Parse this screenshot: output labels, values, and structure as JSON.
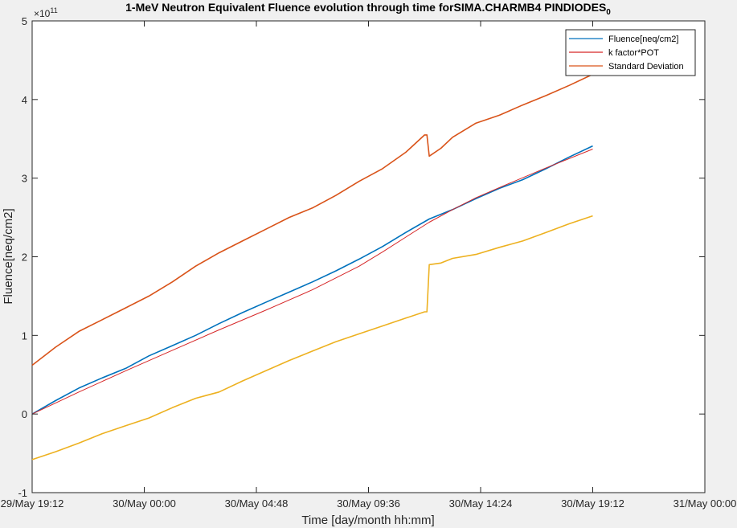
{
  "chart_data": {
    "type": "line",
    "title": "1-MeV Neutron Equivalent Fluence evolution through time forSIMA.CHARMB4 PINDIODES",
    "title_subscript": "0",
    "xlabel": "Time [day/month hh:mm]",
    "ylabel": "Fluence[neq/cm2]",
    "y_exponent_base": "×10",
    "y_exponent_power": "11",
    "xlim": [
      0,
      28.8
    ],
    "ylim": [
      -1,
      5
    ],
    "x_unit": "hours since 29/May 19:12",
    "x_ticks": [
      0,
      4.8,
      9.6,
      14.4,
      19.2,
      24.0,
      28.8
    ],
    "x_tick_labels": [
      "29/May 19:12",
      "30/May 00:00",
      "30/May 04:48",
      "30/May 09:36",
      "30/May 14:24",
      "30/May 19:12",
      "31/May 00:00"
    ],
    "y_ticks": [
      -1,
      0,
      1,
      2,
      3,
      4,
      5
    ],
    "y_tick_labels": [
      "-1",
      "0",
      "1",
      "2",
      "3",
      "4",
      "5"
    ],
    "grid": false,
    "legend_position": "top-right",
    "series": [
      {
        "name": "Fluence[neq/cm2]",
        "color": "#0072bd",
        "x": [
          0.0,
          1.0,
          2.0,
          3.0,
          4.0,
          5.0,
          6.0,
          7.0,
          8.0,
          9.0,
          10.0,
          11.0,
          12.0,
          13.0,
          14.0,
          15.0,
          16.0,
          17.0,
          18.0,
          19.0,
          20.0,
          21.0,
          22.0,
          23.0,
          24.0
        ],
        "values": [
          0.0,
          0.17,
          0.33,
          0.46,
          0.58,
          0.74,
          0.87,
          1.0,
          1.15,
          1.29,
          1.42,
          1.55,
          1.68,
          1.82,
          1.97,
          2.13,
          2.31,
          2.48,
          2.6,
          2.74,
          2.87,
          2.98,
          3.12,
          3.27,
          3.41
        ]
      },
      {
        "name": "k factor*POT",
        "color": "#d62728",
        "x": [
          0.0,
          2.0,
          4.0,
          6.0,
          8.0,
          10.0,
          12.0,
          14.0,
          15.0,
          16.0,
          17.0,
          18.0,
          19.0,
          20.0,
          22.0,
          24.0
        ],
        "values": [
          0.0,
          0.28,
          0.55,
          0.81,
          1.07,
          1.32,
          1.58,
          1.88,
          2.06,
          2.25,
          2.44,
          2.6,
          2.75,
          2.88,
          3.13,
          3.37
        ]
      },
      {
        "name": "Standard Deviation",
        "color": "#d95319",
        "x": [
          0.0,
          1.0,
          2.0,
          3.0,
          4.0,
          5.0,
          6.0,
          7.0,
          8.0,
          9.0,
          10.0,
          11.0,
          12.0,
          13.0,
          14.0,
          15.0,
          16.0,
          16.8,
          16.9,
          17.0,
          17.5,
          18.0,
          19.0,
          20.0,
          21.0,
          22.0,
          23.0,
          24.0
        ],
        "values": [
          0.62,
          0.85,
          1.05,
          1.2,
          1.35,
          1.5,
          1.68,
          1.88,
          2.05,
          2.2,
          2.35,
          2.5,
          2.62,
          2.78,
          2.96,
          3.12,
          3.33,
          3.55,
          3.55,
          3.28,
          3.38,
          3.52,
          3.7,
          3.8,
          3.93,
          4.05,
          4.18,
          4.32
        ]
      },
      {
        "name": "",
        "color": "#edb120",
        "x": [
          0.0,
          1.0,
          2.0,
          3.0,
          4.0,
          5.0,
          6.0,
          7.0,
          8.0,
          9.0,
          10.0,
          11.0,
          12.0,
          13.0,
          14.0,
          15.0,
          16.0,
          16.8,
          16.9,
          17.0,
          17.5,
          18.0,
          19.0,
          20.0,
          21.0,
          22.0,
          23.0,
          24.0
        ],
        "values": [
          -0.58,
          -0.48,
          -0.37,
          -0.25,
          -0.15,
          -0.05,
          0.08,
          0.2,
          0.28,
          0.42,
          0.55,
          0.68,
          0.8,
          0.92,
          1.02,
          1.12,
          1.22,
          1.3,
          1.3,
          1.9,
          1.92,
          1.98,
          2.03,
          2.12,
          2.2,
          2.31,
          2.42,
          2.52
        ]
      }
    ]
  }
}
